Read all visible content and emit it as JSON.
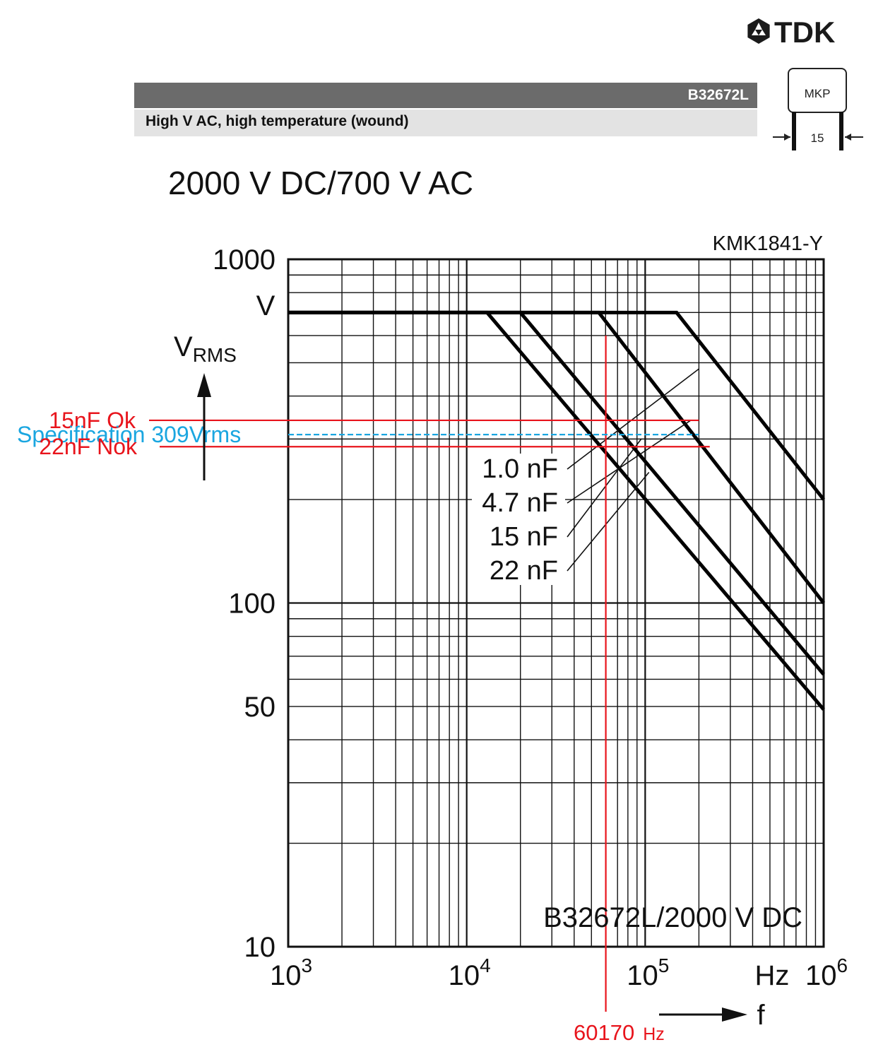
{
  "brand": "TDK",
  "header": {
    "part_number": "B32672L",
    "subtitle": "High V AC, high temperature (wound)"
  },
  "package": {
    "type_label": "MKP",
    "pitch_label": "15"
  },
  "rating_title": "2000 V DC/700 V AC",
  "colors": {
    "annotation_red": "#e8141c",
    "spec_blue": "#1aa6e0",
    "curve": "#000000"
  },
  "chart_data": {
    "type": "line",
    "figure_code": "KMK1841-Y",
    "inner_title": "B32672L/2000 V DC",
    "xscale": "log",
    "yscale": "log",
    "xlim": [
      1000,
      1000000
    ],
    "ylim": [
      10,
      1000
    ],
    "xlabel": "f",
    "x_unit": "Hz",
    "ylabel": "V",
    "ylabel_sub": "RMS",
    "y_unit": "V",
    "x_tick_labels": [
      {
        "base": "10",
        "exp": "3",
        "value": 1000
      },
      {
        "base": "10",
        "exp": "4",
        "value": 10000
      },
      {
        "base": "10",
        "exp": "5",
        "value": 100000
      },
      {
        "base": "10",
        "exp": "6",
        "value": 1000000
      }
    ],
    "y_tick_labels": [
      {
        "label": "1000",
        "value": 1000
      },
      {
        "label": "100",
        "value": 100
      },
      {
        "label": "50",
        "value": 50
      },
      {
        "label": "10",
        "value": 10
      }
    ],
    "grid": true,
    "series": [
      {
        "name": "1.0 nF",
        "x": [
          1000,
          150000,
          1000000
        ],
        "y": [
          700,
          700,
          200
        ]
      },
      {
        "name": "4.7 nF",
        "x": [
          1000,
          55000,
          1000000
        ],
        "y": [
          700,
          700,
          100
        ]
      },
      {
        "name": "15 nF",
        "x": [
          1000,
          20000,
          1000000
        ],
        "y": [
          700,
          700,
          62
        ]
      },
      {
        "name": "22 nF",
        "x": [
          1000,
          13000,
          1000000
        ],
        "y": [
          700,
          700,
          49
        ]
      }
    ],
    "curve_labels": [
      {
        "text": "1.0 nF",
        "target_x": 200000,
        "target_y": 480
      },
      {
        "text": "4.7 nF",
        "target_x": 180000,
        "target_y": 340
      },
      {
        "text": "15 nF",
        "target_x": 95000,
        "target_y": 300
      },
      {
        "text": "22 nF",
        "target_x": 105000,
        "target_y": 240
      }
    ],
    "annotations": {
      "freq_marker": {
        "x": 60170,
        "label_value": "60170",
        "label_unit": "Hz",
        "y_from": 600
      },
      "ok_line": {
        "label": "15nF Ok",
        "y": 340,
        "x_end": 200000
      },
      "spec_line": {
        "label": "Specification 309Vrms",
        "y": 309,
        "x_end": 200000
      },
      "nok_line": {
        "label": "22nF Nok",
        "y": 285,
        "x_end": 230000
      }
    }
  }
}
